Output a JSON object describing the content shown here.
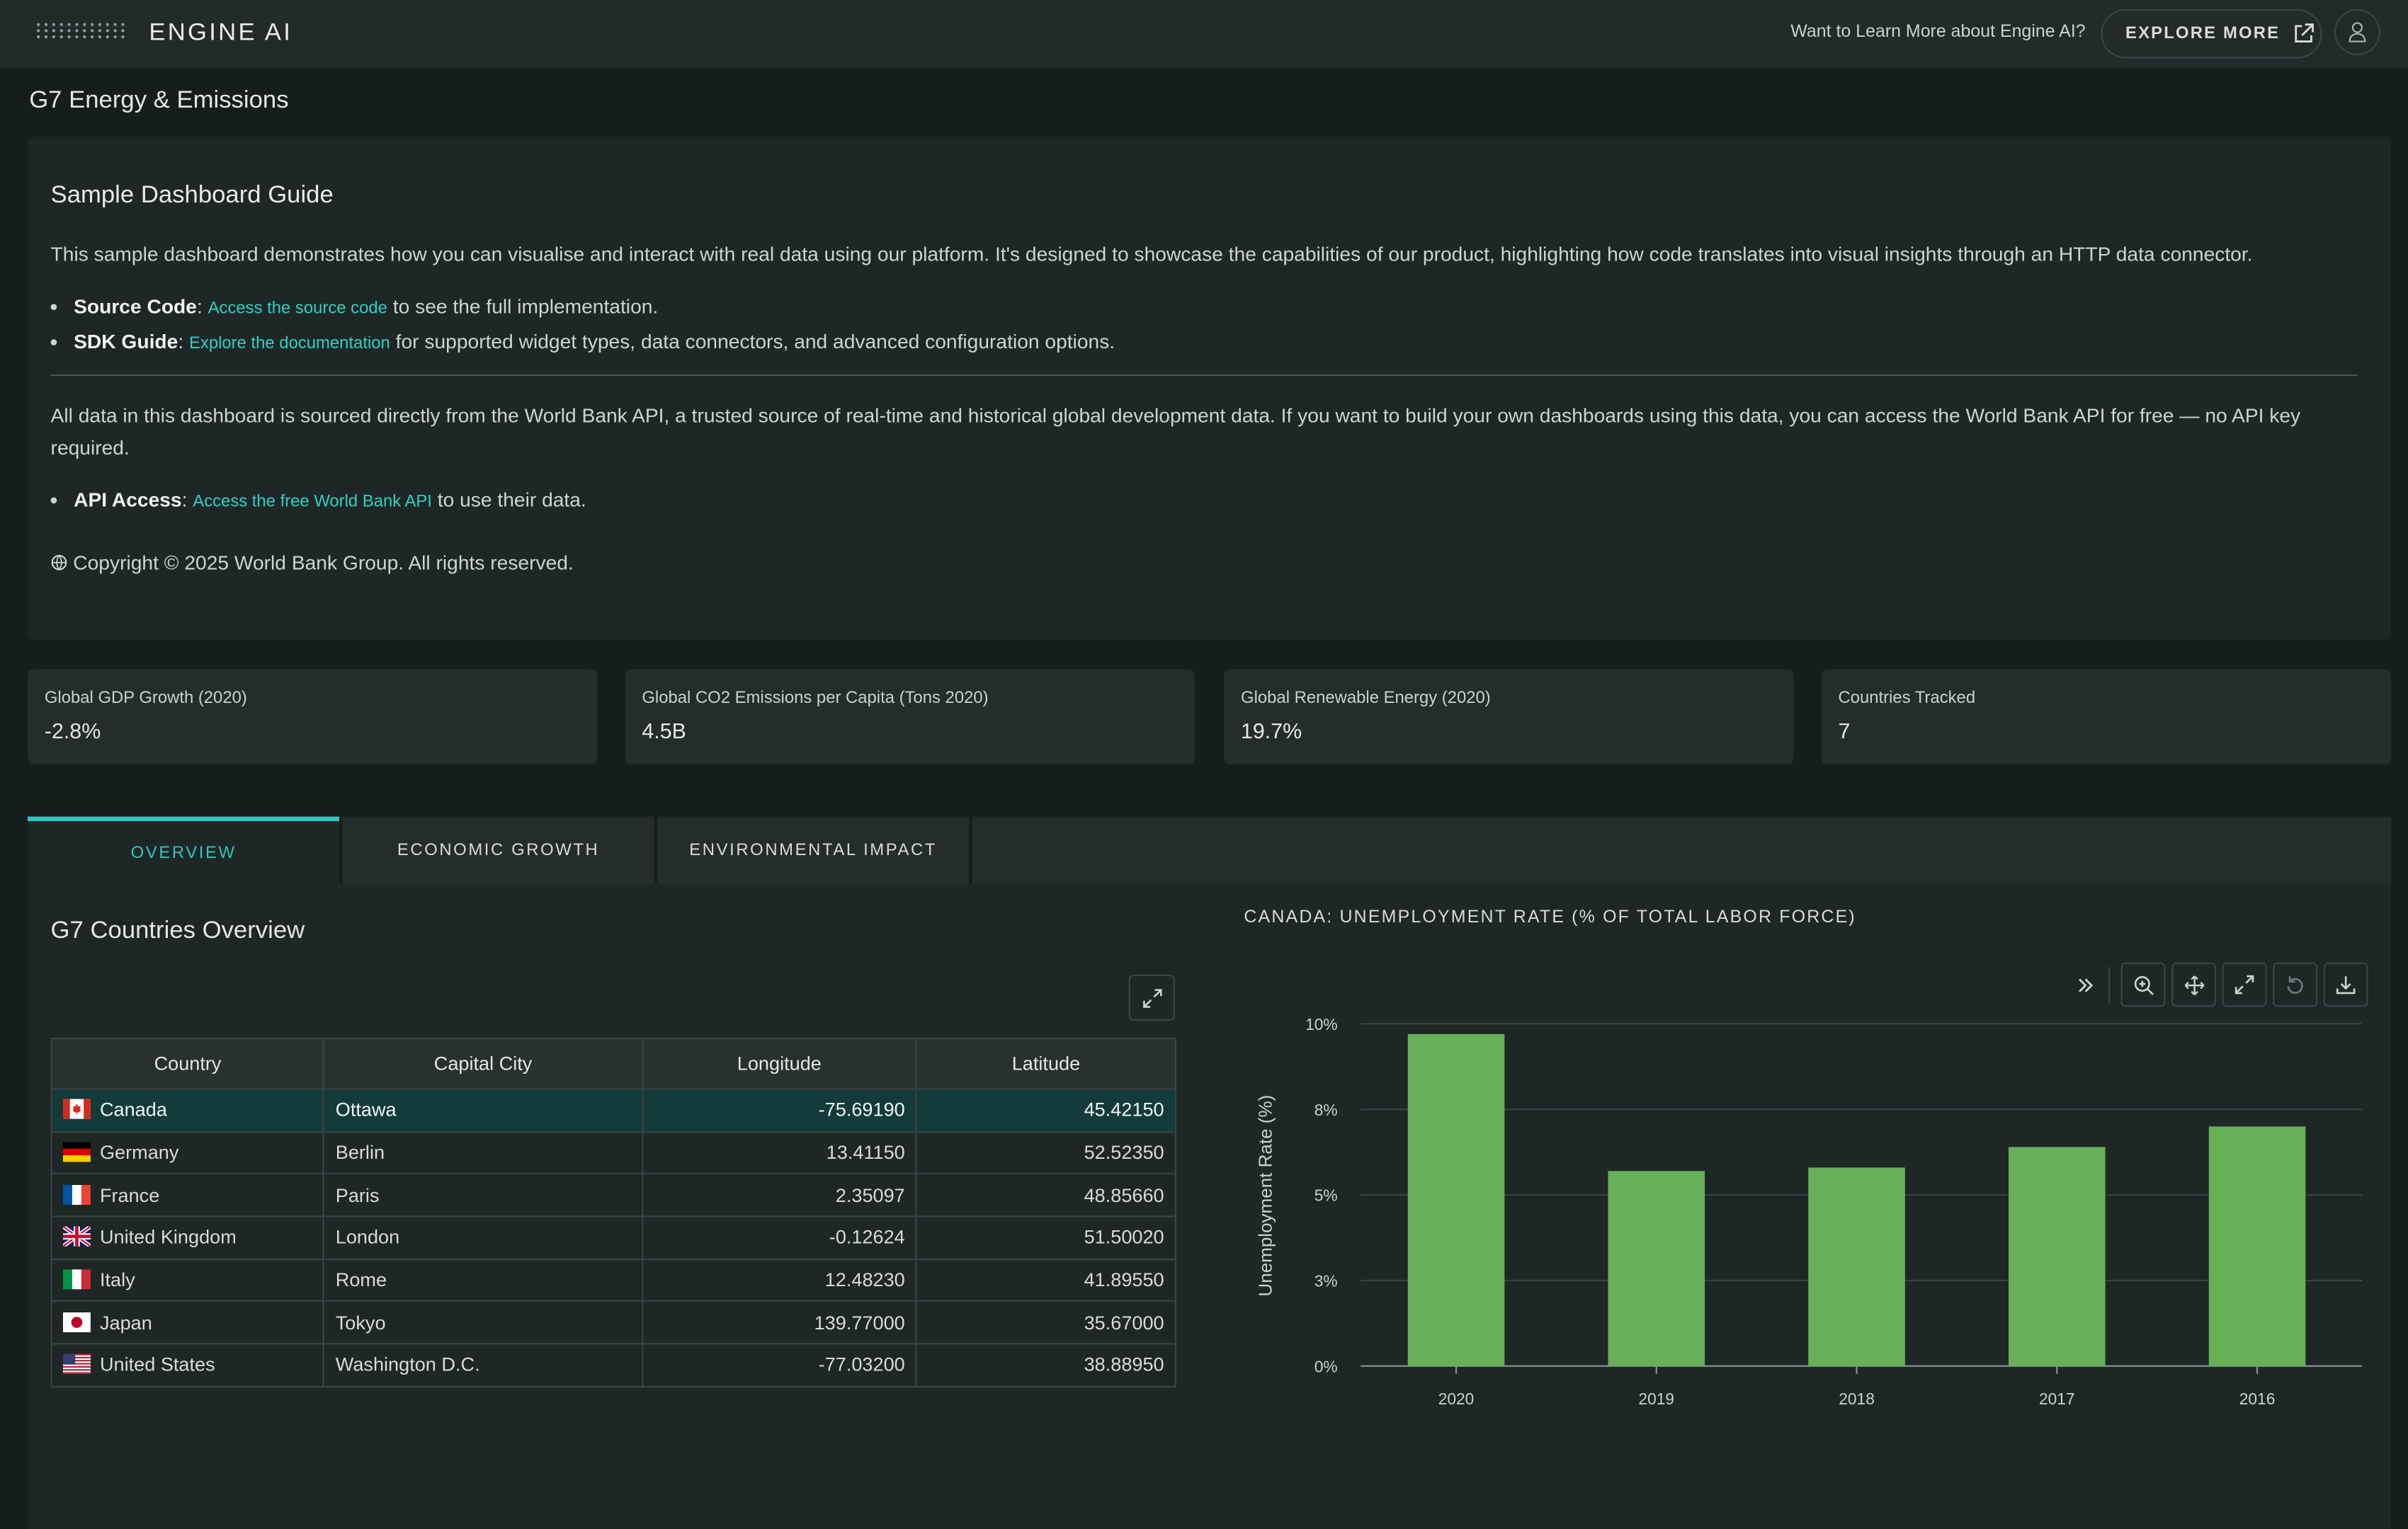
{
  "topbar": {
    "brand": "ENGINE AI",
    "learn_more": "Want to Learn More about Engine AI?",
    "explore_label": "EXPLORE MORE",
    "icons": [
      "logo-dots-icon",
      "external-link-icon",
      "user-icon"
    ]
  },
  "page_title": "G7 Energy & Emissions",
  "guide": {
    "heading": "Sample Dashboard Guide",
    "intro": "This sample dashboard demonstrates how you can visualise and interact with real data using our platform. It's designed to showcase the capabilities of our product, highlighting how code translates into visual insights through an HTTP data connector.",
    "source_code": {
      "label": "Source Code",
      "link": "Access the source code",
      "suffix": "to see the full implementation."
    },
    "sdk_guide": {
      "label": "SDK Guide",
      "link": "Explore the documentation",
      "suffix": "for supported widget types, data connectors, and advanced configuration options."
    },
    "data_note": "All data in this dashboard is sourced directly from the World Bank API, a trusted source of real-time and historical global development data. If you want to build your own dashboards using this data, you can access the World Bank API for free — no API key required.",
    "api_access": {
      "label": "API Access",
      "link": "Access the free World Bank API",
      "suffix": "to use their data."
    },
    "copyright": "Copyright © 2025 World Bank Group. All rights reserved."
  },
  "kpis": [
    {
      "label": "Global GDP Growth (2020)",
      "value": "-2.8%"
    },
    {
      "label": "Global CO2 Emissions per Capita (Tons 2020)",
      "value": "4.5B"
    },
    {
      "label": "Global Renewable Energy (2020)",
      "value": "19.7%"
    },
    {
      "label": "Countries Tracked",
      "value": "7"
    }
  ],
  "tabs": [
    {
      "label": "OVERVIEW",
      "active": true
    },
    {
      "label": "ECONOMIC GROWTH",
      "active": false
    },
    {
      "label": "ENVIRONMENTAL IMPACT",
      "active": false
    }
  ],
  "overview": {
    "title": "G7 Countries Overview",
    "columns": [
      "Country",
      "Capital City",
      "Longitude",
      "Latitude"
    ],
    "rows": [
      {
        "country": "Canada",
        "capital": "Ottawa",
        "longitude": "-75.69190",
        "latitude": "45.42150",
        "selected": true
      },
      {
        "country": "Germany",
        "capital": "Berlin",
        "longitude": "13.41150",
        "latitude": "52.52350"
      },
      {
        "country": "France",
        "capital": "Paris",
        "longitude": "2.35097",
        "latitude": "48.85660"
      },
      {
        "country": "United Kingdom",
        "capital": "London",
        "longitude": "-0.12624",
        "latitude": "51.50020"
      },
      {
        "country": "Italy",
        "capital": "Rome",
        "longitude": "12.48230",
        "latitude": "41.89550"
      },
      {
        "country": "Japan",
        "capital": "Tokyo",
        "longitude": "139.77000",
        "latitude": "35.67000"
      },
      {
        "country": "United States",
        "capital": "Washington D.C.",
        "longitude": "-77.03200",
        "latitude": "38.88950"
      }
    ]
  },
  "chart_toolbar": [
    "chevrons-right-icon",
    "zoom-in-icon",
    "pan-icon",
    "fullscreen-icon",
    "reset-icon",
    "download-icon"
  ],
  "chart_data": {
    "type": "bar",
    "title": "CANADA: UNEMPLOYMENT RATE (% OF TOTAL LABOR FORCE)",
    "xlabel": "",
    "ylabel": "Unemployment Rate (%)",
    "categories": [
      "2020",
      "2019",
      "2018",
      "2017",
      "2016"
    ],
    "values": [
      9.7,
      5.7,
      5.8,
      6.4,
      7.0
    ],
    "ylim": [
      0,
      10
    ],
    "yticks": [
      "0%",
      "3%",
      "5%",
      "8%",
      "10%"
    ],
    "ytick_values": [
      0,
      2.5,
      5,
      7.5,
      10
    ],
    "bar_color": "#66b057",
    "grid": true
  }
}
